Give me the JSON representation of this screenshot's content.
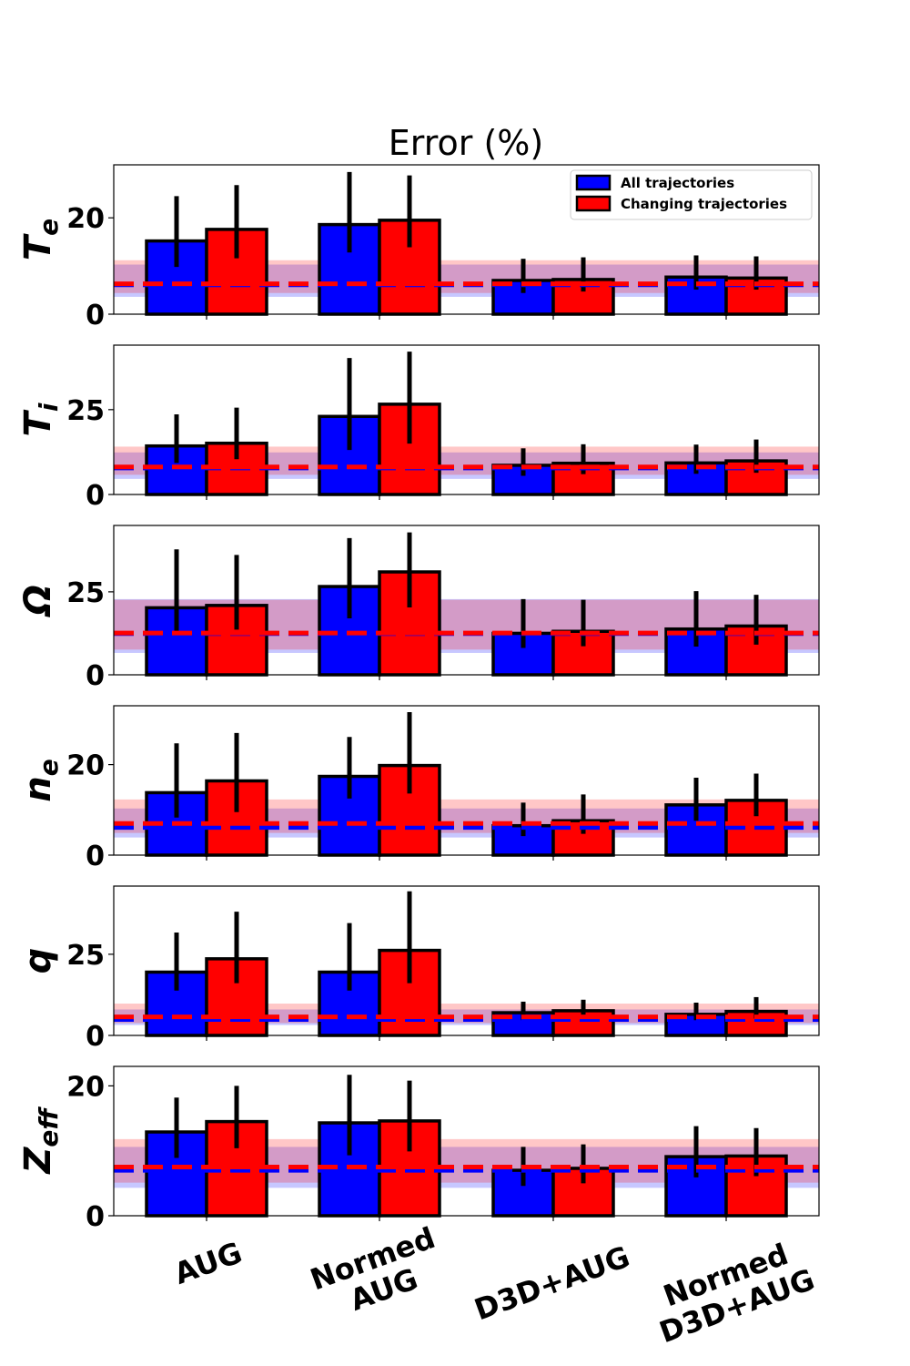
{
  "chart_data": {
    "type": "bar",
    "title": "Error (%)",
    "categories": [
      [
        "AUG"
      ],
      [
        "Normed",
        "AUG"
      ],
      [
        "D3D+AUG"
      ],
      [
        "Normed",
        "D3D+AUG"
      ]
    ],
    "category_labels": [
      "AUG",
      "Normed AUG",
      "D3D+AUG",
      "Normed D3D+AUG"
    ],
    "legend": {
      "position": "top-right",
      "entries": [
        "All trajectories",
        "Changing trajectories"
      ]
    },
    "colors": {
      "all": "#0000ff",
      "changing": "#ff0000",
      "band_all": "#a0a0ff",
      "band_changing": "#ffa0a0",
      "band_overlap": "#d4a0cc"
    },
    "panels": [
      {
        "label_main": "T",
        "label_sub": "e",
        "ylim": [
          0,
          31
        ],
        "yticks": [
          0,
          20
        ],
        "series": [
          {
            "name": "All trajectories",
            "values": [
              15.2,
              18.6,
              7.0,
              7.7
            ],
            "err_low": [
              9.8,
              12.8,
              4.4,
              5.1
            ],
            "err_high": [
              24.5,
              29.5,
              11.5,
              12.2
            ]
          },
          {
            "name": "Changing trajectories",
            "values": [
              17.6,
              19.5,
              7.2,
              7.5
            ],
            "err_low": [
              11.6,
              13.9,
              4.7,
              5.1
            ],
            "err_high": [
              26.8,
              28.8,
              11.8,
              12.0
            ]
          }
        ],
        "ref_all": {
          "mean": 6.1,
          "low": 3.6,
          "high": 10.3
        },
        "ref_changing": {
          "mean": 6.3,
          "low": 4.4,
          "high": 11.2
        }
      },
      {
        "label_main": "T",
        "label_sub": "i",
        "ylim": [
          0,
          44
        ],
        "yticks": [
          0,
          25
        ],
        "series": [
          {
            "name": "All trajectories",
            "values": [
              14.3,
              23.0,
              8.6,
              9.3
            ],
            "err_low": [
              9.3,
              13.1,
              5.5,
              6.1
            ],
            "err_high": [
              23.6,
              40.2,
              13.6,
              14.7
            ]
          },
          {
            "name": "Changing trajectories",
            "values": [
              15.1,
              26.6,
              9.2,
              9.9
            ],
            "err_low": [
              10.4,
              15.0,
              6.0,
              6.4
            ],
            "err_high": [
              25.6,
              42.1,
              14.8,
              16.2
            ]
          }
        ],
        "ref_all": {
          "mean": 7.8,
          "low": 4.6,
          "high": 12.4
        },
        "ref_changing": {
          "mean": 8.1,
          "low": 5.8,
          "high": 14.1
        }
      },
      {
        "label_main": "Ω",
        "label_sub": "",
        "ylim": [
          0,
          45
        ],
        "yticks": [
          0,
          25
        ],
        "series": [
          {
            "name": "All trajectories",
            "values": [
              20.2,
              26.6,
              12.5,
              13.8
            ],
            "err_low": [
              12.6,
              17.0,
              8.1,
              8.5
            ],
            "err_high": [
              37.8,
              41.2,
              22.8,
              25.2
            ]
          },
          {
            "name": "Changing trajectories",
            "values": [
              20.9,
              31.0,
              13.1,
              14.7
            ],
            "err_low": [
              13.6,
              20.3,
              8.6,
              9.1
            ],
            "err_high": [
              36.1,
              42.9,
              22.6,
              24.1
            ]
          }
        ],
        "ref_all": {
          "mean": 12.4,
          "low": 6.6,
          "high": 22.8
        },
        "ref_changing": {
          "mean": 12.6,
          "low": 7.6,
          "high": 22.6
        }
      },
      {
        "label_main": "n",
        "label_sub": "e",
        "ylim": [
          0,
          33
        ],
        "yticks": [
          0,
          20
        ],
        "series": [
          {
            "name": "All trajectories",
            "values": [
              13.8,
              17.4,
              6.5,
              11.1
            ],
            "err_low": [
              8.3,
              12.5,
              4.2,
              7.6
            ],
            "err_high": [
              24.7,
              26.1,
              11.6,
              17.1
            ]
          },
          {
            "name": "Changing trajectories",
            "values": [
              16.4,
              19.8,
              7.6,
              12.1
            ],
            "err_low": [
              9.5,
              13.6,
              4.7,
              8.6
            ],
            "err_high": [
              27.0,
              31.6,
              13.4,
              18.0
            ]
          }
        ],
        "ref_all": {
          "mean": 6.1,
          "low": 3.9,
          "high": 10.3
        },
        "ref_changing": {
          "mean": 7.0,
          "low": 4.9,
          "high": 12.3
        }
      },
      {
        "label_main": "q",
        "label_sub": "",
        "ylim": [
          0,
          46
        ],
        "yticks": [
          0,
          25
        ],
        "series": [
          {
            "name": "All trajectories",
            "values": [
              19.5,
              19.5,
              7.0,
              6.5
            ],
            "err_low": [
              13.8,
              13.8,
              4.7,
              4.7
            ],
            "err_high": [
              31.7,
              34.6,
              10.4,
              10.1
            ]
          },
          {
            "name": "Changing trajectories",
            "values": [
              23.6,
              26.2,
              7.6,
              7.4
            ],
            "err_low": [
              16.1,
              16.1,
              5.2,
              5.2
            ],
            "err_high": [
              38.1,
              44.4,
              11.0,
              11.8
            ]
          }
        ],
        "ref_all": {
          "mean": 4.9,
          "low": 3.2,
          "high": 8.0
        },
        "ref_changing": {
          "mean": 5.7,
          "low": 3.8,
          "high": 9.8
        }
      },
      {
        "label_main": "Z",
        "label_sub": "eff",
        "ylim": [
          0,
          23
        ],
        "yticks": [
          0,
          20
        ],
        "series": [
          {
            "name": "All trajectories",
            "values": [
              12.9,
              14.3,
              7.0,
              9.1
            ],
            "err_low": [
              8.9,
              9.3,
              4.6,
              5.9
            ],
            "err_high": [
              18.2,
              21.7,
              10.6,
              13.8
            ]
          },
          {
            "name": "Changing trajectories",
            "values": [
              14.5,
              14.6,
              7.3,
              9.2
            ],
            "err_low": [
              10.4,
              9.9,
              5.0,
              6.1
            ],
            "err_high": [
              20.0,
              20.8,
              11.0,
              13.5
            ]
          }
        ],
        "ref_all": {
          "mean": 7.0,
          "low": 4.3,
          "high": 10.6
        },
        "ref_changing": {
          "mean": 7.5,
          "low": 5.1,
          "high": 11.8
        }
      }
    ]
  }
}
